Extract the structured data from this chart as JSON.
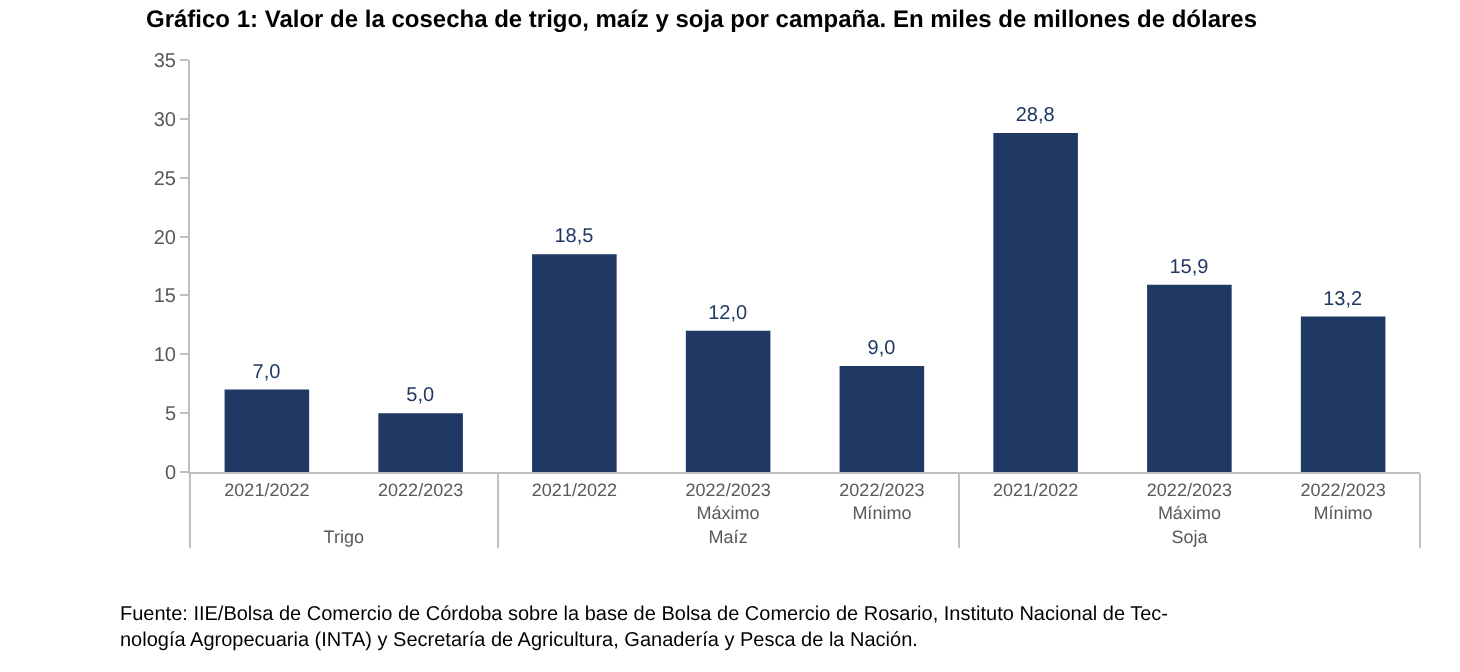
{
  "chart_data": {
    "type": "bar",
    "title": "Gráfico 1: Valor de la cosecha de trigo, maíz y soja por campaña. En miles de millones de dólares",
    "categories": [
      "2021/2022",
      "2022/2023",
      "2021/2022",
      "2022/2023\nMáximo",
      "2022/2023\nMínimo",
      "2021/2022",
      "2022/2023\nMáximo",
      "2022/2023\nMínimo"
    ],
    "values": [
      7.0,
      5.0,
      18.5,
      12.0,
      9.0,
      28.8,
      15.9,
      13.2
    ],
    "value_labels": [
      "7,0",
      "5,0",
      "18,5",
      "12,0",
      "9,0",
      "28,8",
      "15,9",
      "13,2"
    ],
    "color": "#203864",
    "ylim": [
      0,
      35
    ],
    "yticks": [
      0,
      5,
      10,
      15,
      20,
      25,
      30,
      35
    ],
    "legend": false,
    "annotations": [
      "Trigo",
      "Maíz",
      "Soja",
      "Fuente: IIE/Bolsa de Comercio de Córdoba sobre la base de Bolsa de Comercio de Rosario, Instituto Nacional de Tec-\nnología Agropecuaria (INTA) y Secretaría de Agricultura, Ganadería y Pesca de la Nación."
    ]
  }
}
